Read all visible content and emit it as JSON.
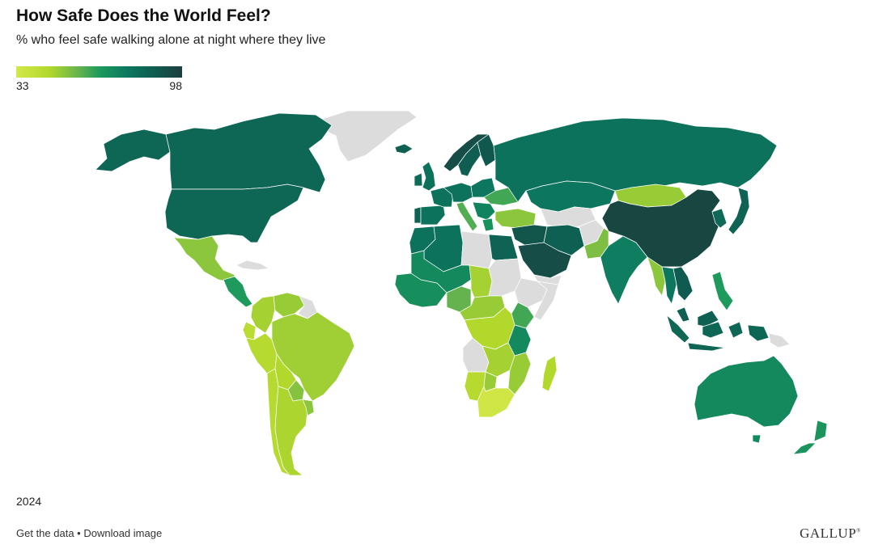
{
  "title": "How Safe Does the World Feel?",
  "subtitle": "% who feel safe walking alone at night where they live",
  "legend": {
    "min": "33",
    "max": "98"
  },
  "year": "2024",
  "footer": {
    "get_data": "Get the data",
    "separator": " • ",
    "download": "Download image"
  },
  "logo": "GALLUP",
  "colors": {
    "no_data": "#dcdcdc",
    "scale_low": "#d4e84a",
    "scale_mid": "#1e9b5c",
    "scale_high": "#1c3f3d"
  },
  "regions": [
    {
      "name": "greenland",
      "value": null
    },
    {
      "name": "canada",
      "value": 84
    },
    {
      "name": "alaska",
      "value": 84
    },
    {
      "name": "united-states",
      "value": 84
    },
    {
      "name": "mexico",
      "value": 52
    },
    {
      "name": "central-america",
      "value": 66
    },
    {
      "name": "cuba",
      "value": null
    },
    {
      "name": "venezuela",
      "value": 50
    },
    {
      "name": "colombia",
      "value": 48
    },
    {
      "name": "guianas",
      "value": null
    },
    {
      "name": "ecuador",
      "value": 43
    },
    {
      "name": "peru",
      "value": 44
    },
    {
      "name": "brazil",
      "value": 49
    },
    {
      "name": "bolivia",
      "value": 46
    },
    {
      "name": "chile",
      "value": 44
    },
    {
      "name": "argentina",
      "value": 47
    },
    {
      "name": "paraguay",
      "value": 53
    },
    {
      "name": "uruguay",
      "value": 52
    },
    {
      "name": "iceland",
      "value": 86
    },
    {
      "name": "norway",
      "value": 93
    },
    {
      "name": "sweden",
      "value": 87
    },
    {
      "name": "finland",
      "value": 89
    },
    {
      "name": "uk",
      "value": 80
    },
    {
      "name": "ireland",
      "value": 82
    },
    {
      "name": "france",
      "value": 80
    },
    {
      "name": "spain",
      "value": 80
    },
    {
      "name": "portugal",
      "value": 85
    },
    {
      "name": "germany",
      "value": 80
    },
    {
      "name": "italy",
      "value": 60
    },
    {
      "name": "poland",
      "value": 78
    },
    {
      "name": "ukraine",
      "value": 62
    },
    {
      "name": "balkans",
      "value": 74
    },
    {
      "name": "greece",
      "value": 69
    },
    {
      "name": "turkey",
      "value": 52
    },
    {
      "name": "russia",
      "value": 80
    },
    {
      "name": "kazakhstan",
      "value": 78
    },
    {
      "name": "central-asia",
      "value": null
    },
    {
      "name": "mongolia",
      "value": 50
    },
    {
      "name": "china",
      "value": 95
    },
    {
      "name": "korea",
      "value": 83
    },
    {
      "name": "japan",
      "value": 85
    },
    {
      "name": "morocco",
      "value": 80
    },
    {
      "name": "algeria",
      "value": 80
    },
    {
      "name": "libya",
      "value": null
    },
    {
      "name": "egypt",
      "value": 85
    },
    {
      "name": "saudi-arabia",
      "value": 93
    },
    {
      "name": "yemen",
      "value": null
    },
    {
      "name": "iran",
      "value": 86
    },
    {
      "name": "iraq-syria",
      "value": 90
    },
    {
      "name": "afghanistan",
      "value": null
    },
    {
      "name": "pakistan",
      "value": 54
    },
    {
      "name": "india",
      "value": 76
    },
    {
      "name": "myanmar",
      "value": 52
    },
    {
      "name": "thailand",
      "value": 78
    },
    {
      "name": "vietnam",
      "value": 88
    },
    {
      "name": "west-africa",
      "value": 70
    },
    {
      "name": "sahel",
      "value": 72
    },
    {
      "name": "nigeria",
      "value": 58
    },
    {
      "name": "chad",
      "value": 48
    },
    {
      "name": "sudan",
      "value": null
    },
    {
      "name": "ethiopia",
      "value": null
    },
    {
      "name": "somalia",
      "value": null
    },
    {
      "name": "kenya",
      "value": 62
    },
    {
      "name": "central-africa",
      "value": 50
    },
    {
      "name": "drc",
      "value": 46
    },
    {
      "name": "tanzania",
      "value": 72
    },
    {
      "name": "angola",
      "value": null
    },
    {
      "name": "zambia",
      "value": 48
    },
    {
      "name": "mozambique",
      "value": 50
    },
    {
      "name": "namibia",
      "value": 44
    },
    {
      "name": "botswana",
      "value": 50
    },
    {
      "name": "south-africa",
      "value": 35
    },
    {
      "name": "madagascar",
      "value": 46
    },
    {
      "name": "indonesia",
      "value": 84
    },
    {
      "name": "malaysia",
      "value": 86
    },
    {
      "name": "philippines",
      "value": 66
    },
    {
      "name": "png",
      "value": null
    },
    {
      "name": "australia",
      "value": 72
    },
    {
      "name": "new-zealand",
      "value": 68
    }
  ]
}
